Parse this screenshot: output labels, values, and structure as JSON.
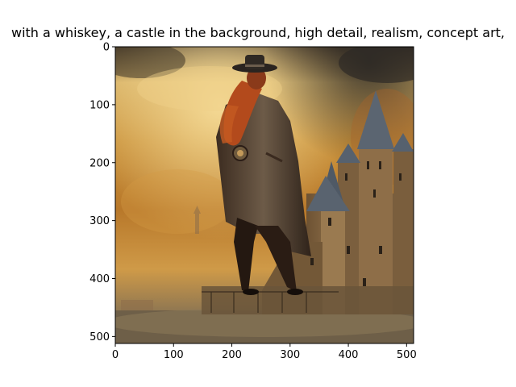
{
  "chart_data": {
    "type": "image",
    "title": "with a whiskey,  a castle in the background, high detail,  realism, concept art,",
    "xlabel": "",
    "ylabel": "",
    "xlim": [
      0,
      512
    ],
    "ylim": [
      512,
      0
    ],
    "x_ticks": [
      0,
      100,
      200,
      300,
      400,
      500
    ],
    "y_ticks": [
      0,
      100,
      200,
      300,
      400,
      500
    ],
    "grid": false,
    "colors": {
      "sky_light": "#f1cf7c",
      "sky_mid": "#c98b2f",
      "sky_dark": "#3b2f22",
      "castle_stone": "#8a6a46",
      "roof": "#56616e",
      "figure": "#2b1d16",
      "coat": "#6a5a4a",
      "hair": "#b34a1c",
      "ground": "#6f6048"
    }
  }
}
